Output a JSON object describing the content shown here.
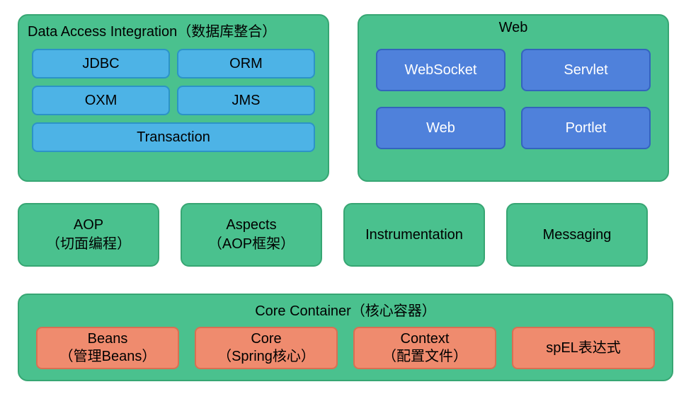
{
  "colors": {
    "green": "#4ac18e",
    "green_border": "#37a673",
    "blue": "#4db3e6",
    "blue_border": "#2c93c7",
    "dblue": "#4f81db",
    "dblue_border": "#3464bd",
    "salmon": "#ef8b6e",
    "salmon_border": "#d96f52"
  },
  "layout": {
    "fontsize_title": 20,
    "fontsize_item": 20,
    "fontsize_mid": 20,
    "data_access_width": 440,
    "data_access_height": 237,
    "web_width": 440,
    "web_height": 237,
    "mid_box_width": 200,
    "mid_box_height": 90,
    "core_height": 124,
    "da_item_height": 42,
    "web_item_height": 60,
    "core_item_height": 60
  },
  "data_access": {
    "title": "Data Access Integration（数据库整合）",
    "items": [
      "JDBC",
      "ORM",
      "OXM",
      "JMS",
      "Transaction"
    ]
  },
  "web": {
    "title": "Web",
    "items": [
      "WebSocket",
      "Servlet",
      "Web",
      "Portlet"
    ]
  },
  "middle": [
    "AOP\n（切面编程）",
    "Aspects\n（AOP框架）",
    "Instrumentation",
    "Messaging"
  ],
  "core": {
    "title": "Core Container（核心容器）",
    "items": [
      "Beans\n（管理Beans）",
      "Core\n（Spring核心）",
      "Context\n（配置文件）",
      "spEL表达式"
    ]
  }
}
